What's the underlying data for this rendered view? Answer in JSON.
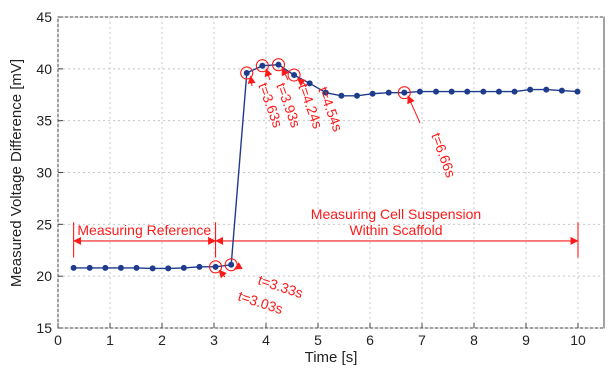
{
  "chart_data": {
    "type": "line",
    "xlabel": "Time [s]",
    "ylabel": "Measured Voltage Difference [mV]",
    "xlim": [
      0,
      10.5
    ],
    "ylim": [
      15,
      45
    ],
    "xticks": [
      0,
      1,
      2,
      3,
      4,
      5,
      6,
      7,
      8,
      9,
      10
    ],
    "yticks": [
      15,
      20,
      25,
      30,
      35,
      40,
      45
    ],
    "grid": true,
    "series": [
      {
        "color": "#1f3c8c",
        "x": [
          0.3,
          0.61,
          0.91,
          1.21,
          1.51,
          1.82,
          2.12,
          2.42,
          2.72,
          3.03,
          3.33,
          3.63,
          3.93,
          4.24,
          4.54,
          4.84,
          5.15,
          5.45,
          5.75,
          6.05,
          6.36,
          6.66,
          6.96,
          7.27,
          7.57,
          7.87,
          8.18,
          8.48,
          8.78,
          9.08,
          9.39,
          9.69,
          9.99
        ],
        "y": [
          20.8,
          20.8,
          20.8,
          20.8,
          20.8,
          20.75,
          20.75,
          20.8,
          20.9,
          20.9,
          21.1,
          39.6,
          40.3,
          40.4,
          39.4,
          38.6,
          37.7,
          37.4,
          37.4,
          37.6,
          37.7,
          37.7,
          37.8,
          37.8,
          37.8,
          37.8,
          37.8,
          37.8,
          37.8,
          38.0,
          38.0,
          37.9,
          37.8
        ]
      }
    ],
    "annotations": {
      "circled_points": [
        {
          "label": "t=3.03s",
          "x": 3.03,
          "y": 20.9
        },
        {
          "label": "t=3.33s",
          "x": 3.33,
          "y": 21.1
        },
        {
          "label": "t=3.63s",
          "x": 3.63,
          "y": 39.6
        },
        {
          "label": "t=3.93s",
          "x": 3.93,
          "y": 40.3
        },
        {
          "label": "t=4.24s",
          "x": 4.24,
          "y": 40.4
        },
        {
          "label": "t=4.54s",
          "x": 4.54,
          "y": 39.4
        },
        {
          "label": "t=6.66s",
          "x": 6.66,
          "y": 37.7
        }
      ],
      "ranges": [
        {
          "label": "Measuring Reference",
          "x_start": 0.3,
          "x_end": 3.03,
          "y": 23.4
        },
        {
          "label_line1": "Measuring Cell Suspension",
          "label_line2": "Within Scaffold",
          "x_start": 3.03,
          "x_end": 10.0,
          "y": 23.4
        }
      ]
    }
  }
}
